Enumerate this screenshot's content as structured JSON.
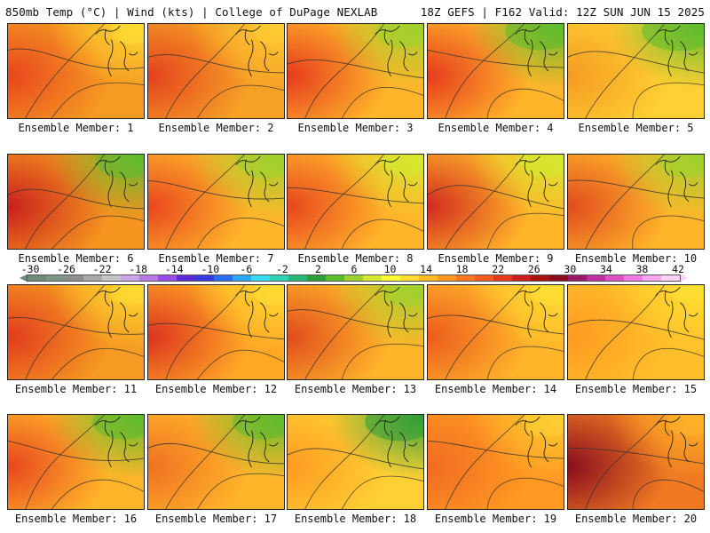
{
  "header": {
    "left_title": "850mb Temp (°C) | Wind (kts) | College of DuPage NEXLAB",
    "right_title": "18Z GEFS | F162 Valid: 12Z SUN JUN 15 2025"
  },
  "panels": [
    {
      "caption": "Ensemble Member: 1"
    },
    {
      "caption": "Ensemble Member: 2"
    },
    {
      "caption": "Ensemble Member: 3"
    },
    {
      "caption": "Ensemble Member: 4"
    },
    {
      "caption": "Ensemble Member: 5"
    },
    {
      "caption": "Ensemble Member: 6"
    },
    {
      "caption": "Ensemble Member: 7"
    },
    {
      "caption": "Ensemble Member: 8"
    },
    {
      "caption": "Ensemble Member: 9"
    },
    {
      "caption": "Ensemble Member: 10"
    },
    {
      "caption": "Ensemble Member: 11"
    },
    {
      "caption": "Ensemble Member: 12"
    },
    {
      "caption": "Ensemble Member: 13"
    },
    {
      "caption": "Ensemble Member: 14"
    },
    {
      "caption": "Ensemble Member: 15"
    },
    {
      "caption": "Ensemble Member: 16"
    },
    {
      "caption": "Ensemble Member: 17"
    },
    {
      "caption": "Ensemble Member: 18"
    },
    {
      "caption": "Ensemble Member: 19"
    },
    {
      "caption": "Ensemble Member: 20"
    }
  ],
  "colorbar": {
    "ticks": [
      "-30",
      "-26",
      "-22",
      "-18",
      "-14",
      "-10",
      "-6",
      "-2",
      "2",
      "6",
      "10",
      "14",
      "18",
      "22",
      "26",
      "30",
      "34",
      "38",
      "42"
    ],
    "colors": [
      "#6e8a78",
      "#7f9585",
      "#8e8e8e",
      "#a8a8a8",
      "#c6c6c6",
      "#c8a8e6",
      "#b77be6",
      "#9a4de6",
      "#5c2ad6",
      "#3a3ae0",
      "#2a6ef0",
      "#2aaaf5",
      "#38dcf0",
      "#32d2b4",
      "#2ab87a",
      "#2f9e3a",
      "#5dbb2e",
      "#9ed22e",
      "#d4ea30",
      "#ffff33",
      "#ffdd33",
      "#ffbb22",
      "#ff9922",
      "#ff7722",
      "#f55a1e",
      "#e53a1e",
      "#cc1e1e",
      "#aa1212",
      "#8a0c1e",
      "#9c1a6a",
      "#c030a0",
      "#dd50c8",
      "#f07ae6",
      "#f7a8f0",
      "#fbd2f8"
    ]
  }
}
